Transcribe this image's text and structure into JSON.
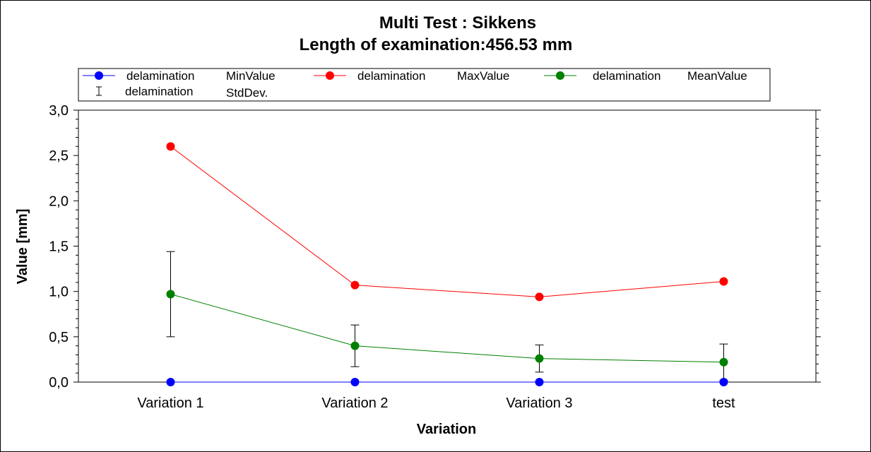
{
  "chart_data": {
    "type": "line",
    "title": "Multi Test : Sikkens",
    "subtitle": "Length of examination:456.53 mm",
    "xlabel": "Variation",
    "ylabel": "Value [mm]",
    "categories": [
      "Variation 1",
      "Variation 2",
      "Variation 3",
      "test"
    ],
    "ylim": [
      0,
      3
    ],
    "yticks": [
      "0,0",
      "0,5",
      "1,0",
      "1,5",
      "2,0",
      "2,5",
      "3,0"
    ],
    "grid": false,
    "legend_position": "top",
    "series": [
      {
        "legend_label": "delamination",
        "legend_value": "MinValue",
        "color": "#0000ff",
        "values": [
          0.0,
          0.0,
          0.0,
          0.0
        ]
      },
      {
        "legend_label": "delamination",
        "legend_value": "MaxValue",
        "color": "#ff0000",
        "values": [
          2.6,
          1.07,
          0.94,
          1.11
        ]
      },
      {
        "legend_label": "delamination",
        "legend_value": "MeanValue",
        "color": "#008000",
        "values": [
          0.97,
          0.4,
          0.26,
          0.22
        ],
        "std_dev": [
          0.47,
          0.23,
          0.15,
          0.2
        ]
      }
    ],
    "errorbar_legend": {
      "legend_label": "delamination",
      "legend_value": "StdDev.",
      "color": "#000000"
    }
  }
}
